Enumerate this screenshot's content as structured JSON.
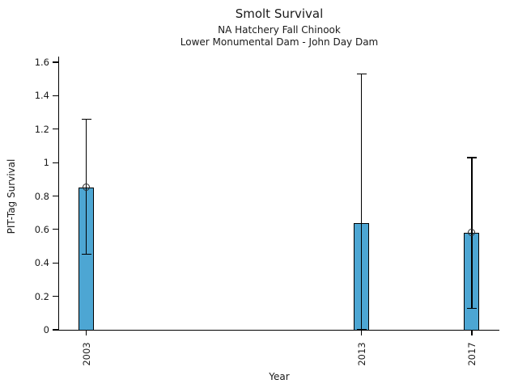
{
  "chart_data": {
    "type": "bar",
    "title": "Smolt Survival",
    "subtitle1": "NA Hatchery Fall Chinook",
    "subtitle2": "Lower Monumental Dam - John Day Dam",
    "xlabel": "Year",
    "ylabel": "PIT-Tag Survival",
    "x": [
      2003,
      2013,
      2017
    ],
    "xtick_labels": [
      "2003",
      "2013",
      "2017"
    ],
    "values": [
      0.85,
      0.64,
      0.58
    ],
    "error_low": [
      0.45,
      0.0,
      0.13
    ],
    "error_high": [
      1.26,
      1.53,
      1.03
    ],
    "markers": [
      true,
      false,
      true
    ],
    "xlim": [
      2002,
      2018
    ],
    "ylim": [
      0,
      1.6
    ],
    "yticks": [
      0,
      0.2,
      0.4,
      0.6,
      0.8,
      1.0,
      1.2,
      1.4,
      1.6
    ],
    "ytick_labels": [
      "0",
      "0.2",
      "0.4",
      "0.6",
      "0.8",
      "1",
      "1.2",
      "1.4",
      "1.6"
    ],
    "bar_color": "#4da6d3",
    "bar_edge_color": "#000000",
    "error_color": "#000000",
    "grid": false,
    "legend": "none"
  }
}
